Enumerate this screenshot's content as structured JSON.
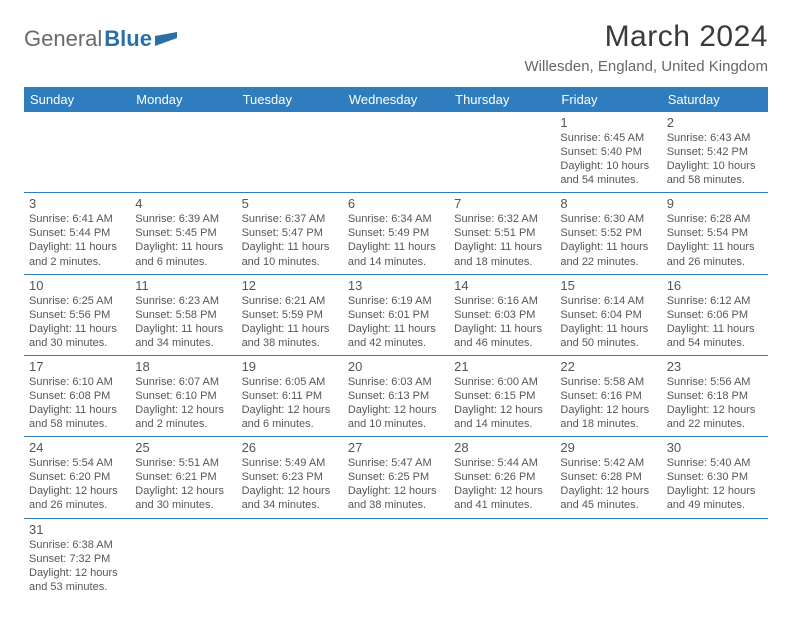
{
  "brand": {
    "part1": "General",
    "part2": "Blue"
  },
  "title": "March 2024",
  "location": "Willesden, England, United Kingdom",
  "colors": {
    "header_bg": "#2f7cbf",
    "header_text": "#ffffff",
    "border": "#2f7cbf",
    "text": "#565656",
    "title": "#3a3a3a"
  },
  "weekdays": [
    "Sunday",
    "Monday",
    "Tuesday",
    "Wednesday",
    "Thursday",
    "Friday",
    "Saturday"
  ],
  "weeks": [
    [
      null,
      null,
      null,
      null,
      null,
      {
        "n": "1",
        "sr": "Sunrise: 6:45 AM",
        "ss": "Sunset: 5:40 PM",
        "d1": "Daylight: 10 hours",
        "d2": "and 54 minutes."
      },
      {
        "n": "2",
        "sr": "Sunrise: 6:43 AM",
        "ss": "Sunset: 5:42 PM",
        "d1": "Daylight: 10 hours",
        "d2": "and 58 minutes."
      }
    ],
    [
      {
        "n": "3",
        "sr": "Sunrise: 6:41 AM",
        "ss": "Sunset: 5:44 PM",
        "d1": "Daylight: 11 hours",
        "d2": "and 2 minutes."
      },
      {
        "n": "4",
        "sr": "Sunrise: 6:39 AM",
        "ss": "Sunset: 5:45 PM",
        "d1": "Daylight: 11 hours",
        "d2": "and 6 minutes."
      },
      {
        "n": "5",
        "sr": "Sunrise: 6:37 AM",
        "ss": "Sunset: 5:47 PM",
        "d1": "Daylight: 11 hours",
        "d2": "and 10 minutes."
      },
      {
        "n": "6",
        "sr": "Sunrise: 6:34 AM",
        "ss": "Sunset: 5:49 PM",
        "d1": "Daylight: 11 hours",
        "d2": "and 14 minutes."
      },
      {
        "n": "7",
        "sr": "Sunrise: 6:32 AM",
        "ss": "Sunset: 5:51 PM",
        "d1": "Daylight: 11 hours",
        "d2": "and 18 minutes."
      },
      {
        "n": "8",
        "sr": "Sunrise: 6:30 AM",
        "ss": "Sunset: 5:52 PM",
        "d1": "Daylight: 11 hours",
        "d2": "and 22 minutes."
      },
      {
        "n": "9",
        "sr": "Sunrise: 6:28 AM",
        "ss": "Sunset: 5:54 PM",
        "d1": "Daylight: 11 hours",
        "d2": "and 26 minutes."
      }
    ],
    [
      {
        "n": "10",
        "sr": "Sunrise: 6:25 AM",
        "ss": "Sunset: 5:56 PM",
        "d1": "Daylight: 11 hours",
        "d2": "and 30 minutes."
      },
      {
        "n": "11",
        "sr": "Sunrise: 6:23 AM",
        "ss": "Sunset: 5:58 PM",
        "d1": "Daylight: 11 hours",
        "d2": "and 34 minutes."
      },
      {
        "n": "12",
        "sr": "Sunrise: 6:21 AM",
        "ss": "Sunset: 5:59 PM",
        "d1": "Daylight: 11 hours",
        "d2": "and 38 minutes."
      },
      {
        "n": "13",
        "sr": "Sunrise: 6:19 AM",
        "ss": "Sunset: 6:01 PM",
        "d1": "Daylight: 11 hours",
        "d2": "and 42 minutes."
      },
      {
        "n": "14",
        "sr": "Sunrise: 6:16 AM",
        "ss": "Sunset: 6:03 PM",
        "d1": "Daylight: 11 hours",
        "d2": "and 46 minutes."
      },
      {
        "n": "15",
        "sr": "Sunrise: 6:14 AM",
        "ss": "Sunset: 6:04 PM",
        "d1": "Daylight: 11 hours",
        "d2": "and 50 minutes."
      },
      {
        "n": "16",
        "sr": "Sunrise: 6:12 AM",
        "ss": "Sunset: 6:06 PM",
        "d1": "Daylight: 11 hours",
        "d2": "and 54 minutes."
      }
    ],
    [
      {
        "n": "17",
        "sr": "Sunrise: 6:10 AM",
        "ss": "Sunset: 6:08 PM",
        "d1": "Daylight: 11 hours",
        "d2": "and 58 minutes."
      },
      {
        "n": "18",
        "sr": "Sunrise: 6:07 AM",
        "ss": "Sunset: 6:10 PM",
        "d1": "Daylight: 12 hours",
        "d2": "and 2 minutes."
      },
      {
        "n": "19",
        "sr": "Sunrise: 6:05 AM",
        "ss": "Sunset: 6:11 PM",
        "d1": "Daylight: 12 hours",
        "d2": "and 6 minutes."
      },
      {
        "n": "20",
        "sr": "Sunrise: 6:03 AM",
        "ss": "Sunset: 6:13 PM",
        "d1": "Daylight: 12 hours",
        "d2": "and 10 minutes."
      },
      {
        "n": "21",
        "sr": "Sunrise: 6:00 AM",
        "ss": "Sunset: 6:15 PM",
        "d1": "Daylight: 12 hours",
        "d2": "and 14 minutes."
      },
      {
        "n": "22",
        "sr": "Sunrise: 5:58 AM",
        "ss": "Sunset: 6:16 PM",
        "d1": "Daylight: 12 hours",
        "d2": "and 18 minutes."
      },
      {
        "n": "23",
        "sr": "Sunrise: 5:56 AM",
        "ss": "Sunset: 6:18 PM",
        "d1": "Daylight: 12 hours",
        "d2": "and 22 minutes."
      }
    ],
    [
      {
        "n": "24",
        "sr": "Sunrise: 5:54 AM",
        "ss": "Sunset: 6:20 PM",
        "d1": "Daylight: 12 hours",
        "d2": "and 26 minutes."
      },
      {
        "n": "25",
        "sr": "Sunrise: 5:51 AM",
        "ss": "Sunset: 6:21 PM",
        "d1": "Daylight: 12 hours",
        "d2": "and 30 minutes."
      },
      {
        "n": "26",
        "sr": "Sunrise: 5:49 AM",
        "ss": "Sunset: 6:23 PM",
        "d1": "Daylight: 12 hours",
        "d2": "and 34 minutes."
      },
      {
        "n": "27",
        "sr": "Sunrise: 5:47 AM",
        "ss": "Sunset: 6:25 PM",
        "d1": "Daylight: 12 hours",
        "d2": "and 38 minutes."
      },
      {
        "n": "28",
        "sr": "Sunrise: 5:44 AM",
        "ss": "Sunset: 6:26 PM",
        "d1": "Daylight: 12 hours",
        "d2": "and 41 minutes."
      },
      {
        "n": "29",
        "sr": "Sunrise: 5:42 AM",
        "ss": "Sunset: 6:28 PM",
        "d1": "Daylight: 12 hours",
        "d2": "and 45 minutes."
      },
      {
        "n": "30",
        "sr": "Sunrise: 5:40 AM",
        "ss": "Sunset: 6:30 PM",
        "d1": "Daylight: 12 hours",
        "d2": "and 49 minutes."
      }
    ],
    [
      {
        "n": "31",
        "sr": "Sunrise: 6:38 AM",
        "ss": "Sunset: 7:32 PM",
        "d1": "Daylight: 12 hours",
        "d2": "and 53 minutes."
      },
      null,
      null,
      null,
      null,
      null,
      null
    ]
  ]
}
